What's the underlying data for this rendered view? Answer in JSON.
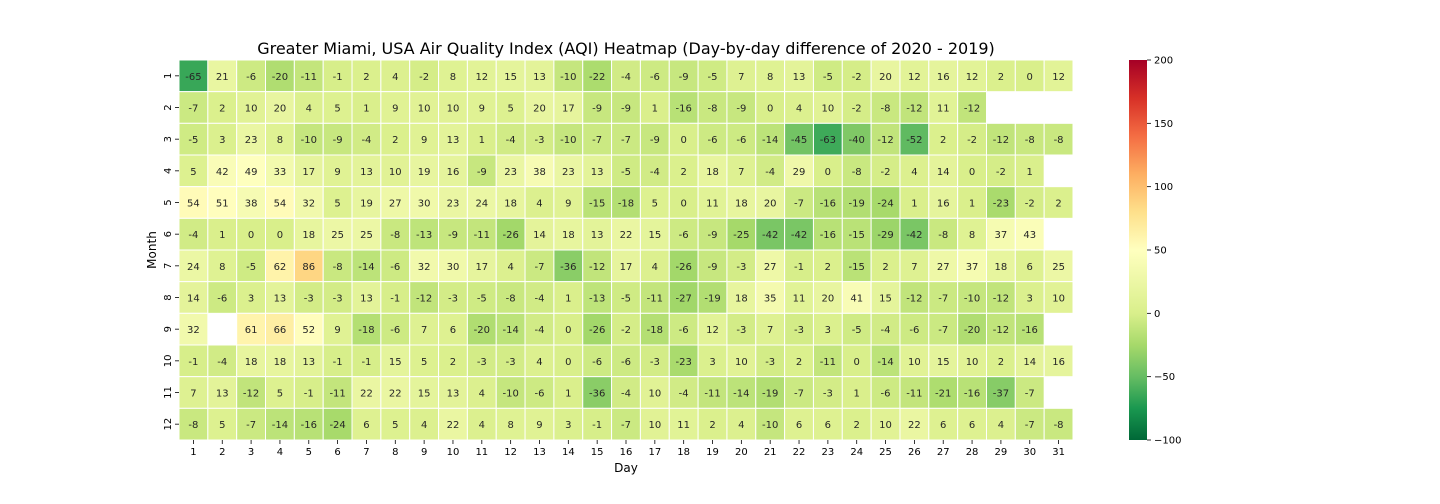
{
  "chart_data": {
    "type": "heatmap",
    "title": "Greater Miami, USA Air Quality Index (AQI) Heatmap (Day-by-day difference of 2020 - 2019)",
    "xlabel": "Day",
    "ylabel": "Month",
    "x_categories": [
      "1",
      "2",
      "3",
      "4",
      "5",
      "6",
      "7",
      "8",
      "9",
      "10",
      "11",
      "12",
      "13",
      "14",
      "15",
      "16",
      "17",
      "18",
      "19",
      "20",
      "21",
      "22",
      "23",
      "24",
      "25",
      "26",
      "27",
      "28",
      "29",
      "30",
      "31"
    ],
    "y_categories": [
      "1",
      "2",
      "3",
      "4",
      "5",
      "6",
      "7",
      "8",
      "9",
      "10",
      "11",
      "12"
    ],
    "values": [
      [
        -65,
        21,
        -6,
        -20,
        -11,
        -1,
        2,
        4,
        -2,
        8,
        12,
        15,
        13,
        -10,
        -22,
        -4,
        -6,
        -9,
        -5,
        7,
        8,
        13,
        -5,
        -2,
        20,
        12,
        16,
        12,
        2,
        0,
        12
      ],
      [
        -7,
        2,
        10,
        20,
        4,
        5,
        1,
        9,
        10,
        10,
        9,
        5,
        20,
        17,
        -9,
        -9,
        1,
        -16,
        -8,
        -9,
        0,
        4,
        10,
        -2,
        -8,
        -12,
        11,
        -12,
        null,
        null,
        null
      ],
      [
        -5,
        3,
        23,
        8,
        -10,
        -9,
        -4,
        2,
        9,
        13,
        1,
        -4,
        -3,
        -10,
        -7,
        -7,
        -9,
        0,
        -6,
        -6,
        -14,
        -45,
        -63,
        -40,
        -12,
        -52,
        2,
        -2,
        -12,
        -8,
        -8
      ],
      [
        5,
        42,
        49,
        33,
        17,
        9,
        13,
        10,
        19,
        16,
        -9,
        23,
        38,
        23,
        13,
        -5,
        -4,
        2,
        18,
        7,
        -4,
        29,
        0,
        -8,
        -2,
        4,
        14,
        0,
        -2,
        1,
        null
      ],
      [
        54,
        51,
        38,
        54,
        32,
        5,
        19,
        27,
        30,
        23,
        24,
        18,
        4,
        9,
        -15,
        -18,
        5,
        0,
        11,
        18,
        20,
        -7,
        -16,
        -19,
        -24,
        1,
        16,
        1,
        -23,
        -2,
        2
      ],
      [
        -4,
        1,
        0,
        0,
        18,
        25,
        25,
        -8,
        -13,
        -9,
        -11,
        -26,
        14,
        18,
        13,
        22,
        15,
        -6,
        -9,
        -25,
        -42,
        -42,
        -16,
        -15,
        -29,
        -42,
        -8,
        8,
        37,
        43,
        null
      ],
      [
        24,
        8,
        -5,
        62,
        86,
        -8,
        -14,
        -6,
        32,
        30,
        17,
        4,
        -7,
        -36,
        -12,
        17,
        4,
        -26,
        -9,
        -3,
        27,
        -1,
        2,
        -15,
        2,
        7,
        27,
        37,
        18,
        6,
        25
      ],
      [
        14,
        -6,
        3,
        13,
        -3,
        -3,
        13,
        -1,
        -12,
        -3,
        -5,
        -8,
        -4,
        1,
        -13,
        -5,
        -11,
        -27,
        -19,
        18,
        35,
        11,
        20,
        41,
        15,
        -12,
        -7,
        -10,
        -12,
        3,
        10
      ],
      [
        32,
        null,
        61,
        66,
        52,
        9,
        -18,
        -6,
        7,
        6,
        -20,
        -14,
        -4,
        0,
        -26,
        -2,
        -18,
        -6,
        12,
        -3,
        7,
        -3,
        3,
        -5,
        -4,
        -6,
        -7,
        -20,
        -12,
        -16,
        null
      ],
      [
        -1,
        -4,
        18,
        18,
        13,
        -1,
        -1,
        15,
        5,
        2,
        -3,
        -3,
        4,
        0,
        -6,
        -6,
        -3,
        -23,
        3,
        10,
        -3,
        2,
        -11,
        0,
        -14,
        10,
        15,
        10,
        2,
        14,
        16
      ],
      [
        7,
        13,
        -12,
        5,
        -1,
        -11,
        22,
        22,
        15,
        13,
        4,
        -10,
        -6,
        1,
        -36,
        -4,
        10,
        -4,
        -11,
        -14,
        -19,
        -7,
        -3,
        1,
        -6,
        -11,
        -21,
        -16,
        -37,
        -7,
        null
      ],
      [
        -8,
        5,
        -7,
        -14,
        -16,
        -24,
        6,
        5,
        4,
        22,
        4,
        8,
        9,
        3,
        -1,
        -7,
        10,
        11,
        2,
        4,
        -10,
        6,
        6,
        2,
        10,
        22,
        6,
        6,
        4,
        -7,
        -8
      ]
    ],
    "colorbar": {
      "min": -100,
      "max": 200,
      "ticks": [
        -100,
        -50,
        0,
        50,
        100,
        150,
        200
      ],
      "tick_labels": [
        "−100",
        "−50",
        "0",
        "50",
        "100",
        "150",
        "200"
      ],
      "colormap": "RdYlGn_r",
      "center": 50
    }
  }
}
